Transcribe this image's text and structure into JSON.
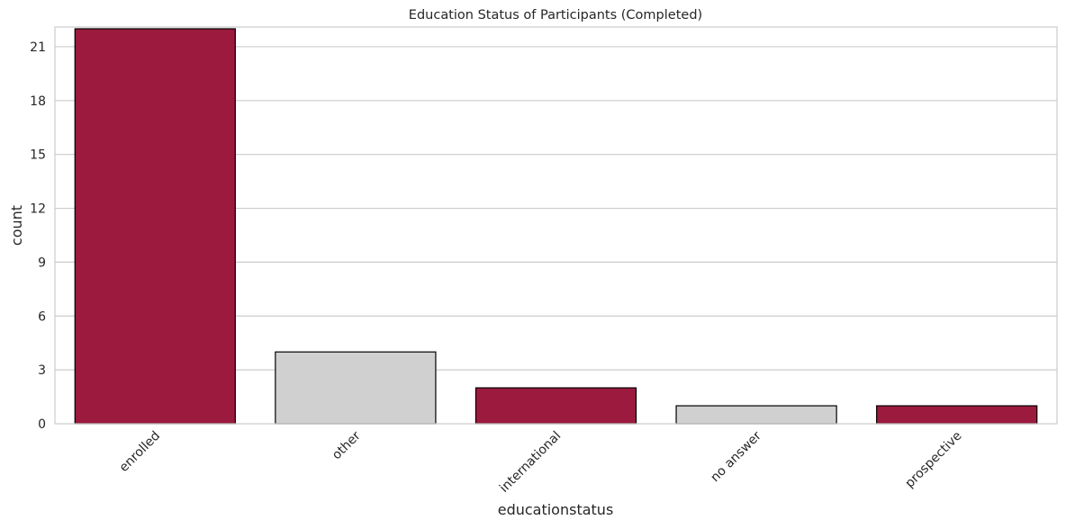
{
  "chart_data": {
    "type": "bar",
    "title": "Education Status of Participants (Completed)",
    "xlabel": "educationstatus",
    "ylabel": "count",
    "categories": [
      "enrolled",
      "other",
      "international",
      "no answer",
      "prospective"
    ],
    "values": [
      22,
      4,
      2,
      1,
      1
    ],
    "bar_colors": [
      "#9b1a3d",
      "#d0d0d0",
      "#9b1a3d",
      "#d0d0d0",
      "#9b1a3d"
    ],
    "bar_edge_color": "#000000",
    "ylim": [
      0,
      22.1
    ],
    "yticks": [
      0,
      3,
      6,
      9,
      12,
      15,
      18,
      21
    ],
    "grid": "horizontal",
    "grid_color": "#cccccc",
    "spine_color": "#cccccc",
    "xtick_rotation": "45"
  }
}
